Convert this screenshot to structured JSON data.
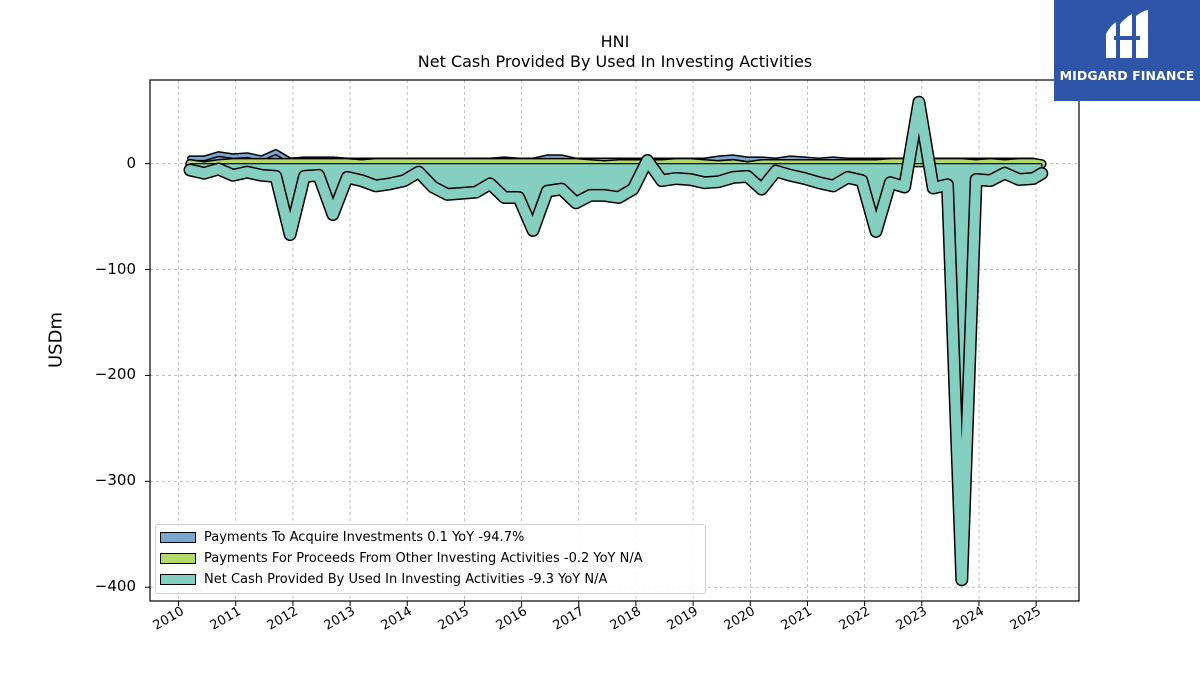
{
  "chart_data": {
    "type": "area",
    "title": "HNI",
    "subtitle": "Net Cash Provided By Used In Investing Activities",
    "ylabel": "USDm",
    "xlabel": "",
    "xlim": [
      2009.5,
      2025.75
    ],
    "ylim": [
      -413,
      79
    ],
    "grid": true,
    "legend_position": "bottom-left",
    "yticks": [
      0,
      -100,
      -200,
      -300,
      -400
    ],
    "ytick_labels": [
      "0",
      "−100",
      "−200",
      "−300",
      "−400"
    ],
    "xticks": [
      "2010",
      "2011",
      "2012",
      "2013",
      "2014",
      "2015",
      "2016",
      "2017",
      "2018",
      "2019",
      "2020",
      "2021",
      "2022",
      "2023",
      "2024",
      "2025"
    ],
    "x": [
      2010.2,
      2010.45,
      2010.7,
      2010.95,
      2011.2,
      2011.45,
      2011.7,
      2011.95,
      2012.2,
      2012.45,
      2012.7,
      2012.95,
      2013.2,
      2013.45,
      2013.7,
      2013.95,
      2014.2,
      2014.45,
      2014.7,
      2014.95,
      2015.2,
      2015.45,
      2015.7,
      2015.95,
      2016.2,
      2016.45,
      2016.7,
      2016.95,
      2017.2,
      2017.45,
      2017.7,
      2017.95,
      2018.2,
      2018.45,
      2018.7,
      2018.95,
      2019.2,
      2019.45,
      2019.7,
      2019.95,
      2020.2,
      2020.45,
      2020.7,
      2020.95,
      2021.2,
      2021.45,
      2021.7,
      2021.95,
      2022.2,
      2022.45,
      2022.7,
      2022.95,
      2023.2,
      2023.45,
      2023.7,
      2023.95,
      2024.2,
      2024.45,
      2024.7,
      2024.95,
      2025.1
    ],
    "series": [
      {
        "name": "Payments To Acquire Investments",
        "legend_label": "Payments To Acquire Investments  0.1 YoY -94.7%",
        "color": "#7aa6cf",
        "values": [
          5,
          5,
          9,
          7,
          8,
          5,
          11,
          3,
          4,
          4,
          4,
          3,
          3,
          3,
          3,
          3,
          3,
          3,
          3,
          3,
          3,
          3,
          4,
          3,
          3,
          6,
          6,
          3,
          3,
          3,
          3,
          3,
          3,
          3,
          3,
          3,
          3,
          5,
          6,
          4,
          4,
          3,
          5,
          4,
          3,
          4,
          3,
          3,
          3,
          3,
          3,
          3,
          3,
          3,
          3,
          3,
          3,
          3,
          3,
          3,
          0.1
        ]
      },
      {
        "name": "Payments For Proceeds From Other Investing Activities",
        "legend_label": "Payments For Proceeds From Other Investing Activities  -0.2 YoY N/A",
        "color": "#b3d96b",
        "values": [
          0,
          -2,
          0,
          1,
          1,
          1,
          1,
          1,
          1,
          1,
          1,
          1,
          0,
          1,
          1,
          1,
          1,
          1,
          1,
          1,
          1,
          1,
          1,
          1,
          1,
          1,
          1,
          1,
          0,
          -1,
          0,
          0,
          0,
          0,
          1,
          1,
          0,
          -1,
          0,
          -2,
          0,
          0,
          0,
          0,
          0,
          0,
          0,
          0,
          0,
          1,
          1,
          1,
          1,
          1,
          1,
          0,
          1,
          0,
          1,
          1,
          -0.2
        ]
      },
      {
        "name": "Net Cash Provided By Used In Investing Activities",
        "legend_label": "Net Cash Provided By Used In Investing Activities  -9.3 YoY N/A",
        "color": "#85cfc0",
        "values": [
          -6,
          -9,
          -5,
          -11,
          -8,
          -11,
          -12,
          -67,
          -12,
          -11,
          -48,
          -13,
          -16,
          -21,
          -19,
          -16,
          -8,
          -22,
          -29,
          -28,
          -27,
          -19,
          -32,
          -32,
          -63,
          -26,
          -24,
          -37,
          -30,
          -30,
          -32,
          -24,
          3,
          -16,
          -14,
          -15,
          -18,
          -17,
          -13,
          -12,
          -24,
          -7,
          -11,
          -14,
          -18,
          -21,
          -13,
          -16,
          -64,
          -18,
          -22,
          58,
          -23,
          -20,
          -393,
          -15,
          -16,
          -9,
          -15,
          -14,
          -9.3
        ]
      }
    ]
  },
  "logo": {
    "text": "MIDGARD FINANCE"
  }
}
